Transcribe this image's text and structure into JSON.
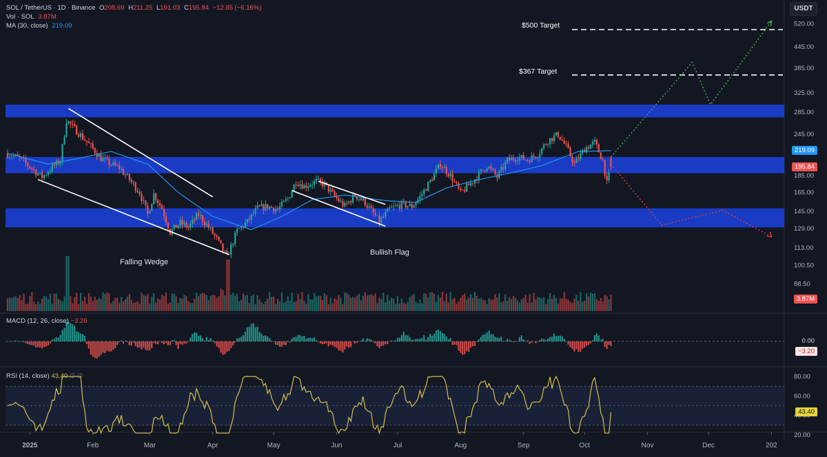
{
  "header": {
    "symbol": "SOL / TetherUS · 1D · Binance",
    "open_label": "O",
    "open": "208.69",
    "high_label": "H",
    "high": "211.25",
    "low_label": "L",
    "low": "191.03",
    "close_label": "C",
    "close": "195.84",
    "change": "−12.85 (−6.16%)",
    "vol_label": "Vol · SOL",
    "vol": "3.87M",
    "ma_label": "MA (30, close)",
    "ma": "219.09",
    "currency_button": "USDT"
  },
  "annotations": {
    "falling_wedge": "Falling Wedge",
    "bullish_flag": "Bullish Flag",
    "target_500": "$500 Target",
    "target_367": "$367 Target"
  },
  "tags": {
    "ma": "219.09",
    "price": "195.84",
    "volume": "3.87M",
    "macd": "−3.20",
    "macd_zero": "0.00",
    "rsi": "43.40"
  },
  "macd_legend": {
    "label": "MACD (12, 26, close)",
    "value": "−3.20"
  },
  "rsi_legend": {
    "label": "RSI (14, close)",
    "value": "43.40",
    "extra": "∅ ∅"
  },
  "colors": {
    "up": "#26a69a",
    "down": "#ef5350",
    "ma": "#2196f3",
    "zone": "#1c3fd6",
    "rsi": "#d4c04a",
    "bull_path": "#4caf50",
    "bear_path": "#e53935",
    "bg": "#131722"
  },
  "chart_data": {
    "type": "candlestick",
    "y_scale": "log",
    "price_ticks": [
      "520.00",
      "445.00",
      "385.00",
      "325.00",
      "285.00",
      "245.00",
      "219.09",
      "195.84",
      "185.00",
      "165.00",
      "145.00",
      "129.00",
      "113.00",
      "100.50",
      "88.50"
    ],
    "x_tick_labels": [
      "2025",
      "Feb",
      "Mar",
      "Apr",
      "May",
      "Jun",
      "Jul",
      "Aug",
      "Sep",
      "Oct",
      "Nov",
      "Dec",
      "202"
    ],
    "x_tick_dates": [
      "2025-01-01",
      "2025-02-01",
      "2025-03-01",
      "2025-04-01",
      "2025-05-01",
      "2025-06-01",
      "2025-07-01",
      "2025-08-01",
      "2025-09-01",
      "2025-10-01",
      "2025-11-01",
      "2025-12-01",
      "2026-01-01"
    ],
    "price_path": [
      [
        "2024-12-21",
        215
      ],
      [
        "2024-12-27",
        208
      ],
      [
        "2025-01-02",
        194
      ],
      [
        "2025-01-07",
        183
      ],
      [
        "2025-01-12",
        196
      ],
      [
        "2025-01-16",
        205
      ],
      [
        "2025-01-19",
        270
      ],
      [
        "2025-01-22",
        258
      ],
      [
        "2025-01-27",
        240
      ],
      [
        "2025-02-01",
        222
      ],
      [
        "2025-02-05",
        208
      ],
      [
        "2025-02-10",
        200
      ],
      [
        "2025-02-14",
        195
      ],
      [
        "2025-02-19",
        180
      ],
      [
        "2025-02-24",
        165
      ],
      [
        "2025-02-28",
        142
      ],
      [
        "2025-03-03",
        163
      ],
      [
        "2025-03-07",
        148
      ],
      [
        "2025-03-11",
        126
      ],
      [
        "2025-03-16",
        134
      ],
      [
        "2025-03-20",
        130
      ],
      [
        "2025-03-25",
        142
      ],
      [
        "2025-03-30",
        130
      ],
      [
        "2025-04-03",
        120
      ],
      [
        "2025-04-08",
        106
      ],
      [
        "2025-04-13",
        127
      ],
      [
        "2025-04-18",
        135
      ],
      [
        "2025-04-23",
        148
      ],
      [
        "2025-04-28",
        150
      ],
      [
        "2025-05-03",
        147
      ],
      [
        "2025-05-08",
        158
      ],
      [
        "2025-05-12",
        178
      ],
      [
        "2025-05-16",
        172
      ],
      [
        "2025-05-22",
        178
      ],
      [
        "2025-05-26",
        174
      ],
      [
        "2025-06-01",
        158
      ],
      [
        "2025-06-05",
        150
      ],
      [
        "2025-06-10",
        162
      ],
      [
        "2025-06-15",
        154
      ],
      [
        "2025-06-22",
        135
      ],
      [
        "2025-06-27",
        147
      ],
      [
        "2025-07-03",
        152
      ],
      [
        "2025-07-08",
        150
      ],
      [
        "2025-07-12",
        160
      ],
      [
        "2025-07-17",
        178
      ],
      [
        "2025-07-22",
        200
      ],
      [
        "2025-07-27",
        185
      ],
      [
        "2025-08-01",
        164
      ],
      [
        "2025-08-07",
        178
      ],
      [
        "2025-08-14",
        198
      ],
      [
        "2025-08-19",
        183
      ],
      [
        "2025-08-24",
        205
      ],
      [
        "2025-08-29",
        210
      ],
      [
        "2025-09-03",
        206
      ],
      [
        "2025-09-08",
        214
      ],
      [
        "2025-09-13",
        235
      ],
      [
        "2025-09-18",
        245
      ],
      [
        "2025-09-22",
        225
      ],
      [
        "2025-09-26",
        200
      ],
      [
        "2025-10-01",
        222
      ],
      [
        "2025-10-06",
        232
      ],
      [
        "2025-10-10",
        205
      ],
      [
        "2025-10-12",
        175
      ],
      [
        "2025-10-14",
        195.84
      ]
    ],
    "ma30": [
      [
        "2024-12-21",
        215
      ],
      [
        "2025-01-10",
        200
      ],
      [
        "2025-01-25",
        208
      ],
      [
        "2025-02-10",
        218
      ],
      [
        "2025-02-28",
        200
      ],
      [
        "2025-03-15",
        165
      ],
      [
        "2025-04-01",
        140
      ],
      [
        "2025-04-20",
        128
      ],
      [
        "2025-05-05",
        140
      ],
      [
        "2025-05-20",
        157
      ],
      [
        "2025-06-05",
        162
      ],
      [
        "2025-06-25",
        156
      ],
      [
        "2025-07-10",
        154
      ],
      [
        "2025-07-25",
        170
      ],
      [
        "2025-08-10",
        180
      ],
      [
        "2025-08-25",
        188
      ],
      [
        "2025-09-10",
        198
      ],
      [
        "2025-09-28",
        218
      ],
      [
        "2025-10-14",
        219.09
      ]
    ],
    "zones": [
      {
        "name": "upper resistance",
        "low": 275,
        "high": 300
      },
      {
        "name": "middle band",
        "low": 188,
        "high": 210
      },
      {
        "name": "lower support",
        "low": 130,
        "high": 148
      }
    ],
    "falling_wedge": {
      "upper": [
        [
          "2025-01-20",
          292
        ],
        [
          "2025-04-01",
          160
        ]
      ],
      "lower": [
        [
          "2025-01-05",
          180
        ],
        [
          "2025-04-09",
          108
        ]
      ]
    },
    "bullish_flag": {
      "upper": [
        [
          "2025-05-23",
          178
        ],
        [
          "2025-06-25",
          152
        ]
      ],
      "lower": [
        [
          "2025-05-10",
          167
        ],
        [
          "2025-06-25",
          131
        ]
      ]
    },
    "targets": [
      {
        "label": "$500 Target",
        "value": 500
      },
      {
        "label": "$367 Target",
        "value": 367
      }
    ],
    "bull_projection": [
      [
        "2025-10-14",
        210
      ],
      [
        "2025-11-23",
        400
      ],
      [
        "2025-12-02",
        300
      ],
      [
        "2026-01-01",
        530
      ]
    ],
    "bear_projection": [
      [
        "2025-10-14",
        200
      ],
      [
        "2025-11-08",
        132
      ],
      [
        "2025-12-08",
        146
      ],
      [
        "2026-01-01",
        122
      ]
    ],
    "macd": {
      "current": -3.2,
      "zero": 0.0
    },
    "rsi": {
      "current": 43.4,
      "ticks": [
        80,
        60,
        40,
        20
      ],
      "band": [
        30,
        70
      ]
    }
  }
}
